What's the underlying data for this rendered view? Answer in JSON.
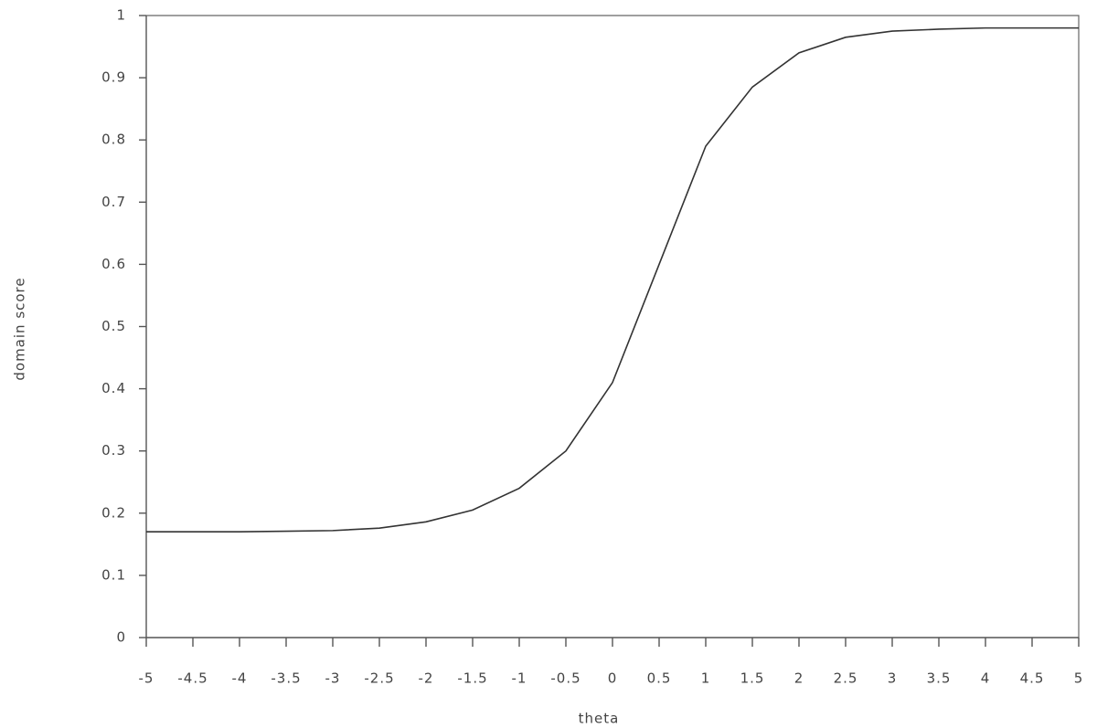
{
  "chart_data": {
    "type": "line",
    "x_label": "theta",
    "y_label": "domain score",
    "x": [
      -5,
      -4.5,
      -4,
      -3.5,
      -3,
      -2.5,
      -2,
      -1.5,
      -1,
      -0.5,
      0,
      0.5,
      1,
      1.5,
      2,
      2.5,
      3,
      3.5,
      4,
      4.5,
      5
    ],
    "values": [
      0.17,
      0.17,
      0.17,
      0.171,
      0.172,
      0.176,
      0.186,
      0.205,
      0.24,
      0.3,
      0.41,
      0.6,
      0.79,
      0.885,
      0.94,
      0.965,
      0.975,
      0.978,
      0.98,
      0.98,
      0.98
    ],
    "color": "#333333",
    "xlim": [
      -5,
      5
    ],
    "ylim": [
      0,
      1
    ],
    "xticks": [
      -5,
      -4.5,
      -4,
      -3.5,
      -3,
      -2.5,
      -2,
      -1.5,
      -1,
      -0.5,
      0,
      0.5,
      1,
      1.5,
      2,
      2.5,
      3,
      3.5,
      4,
      4.5,
      5
    ],
    "yticks": [
      0,
      0.1,
      0.2,
      0.3,
      0.4,
      0.5,
      0.6,
      0.7,
      0.8,
      0.9,
      1
    ],
    "grid": false
  }
}
